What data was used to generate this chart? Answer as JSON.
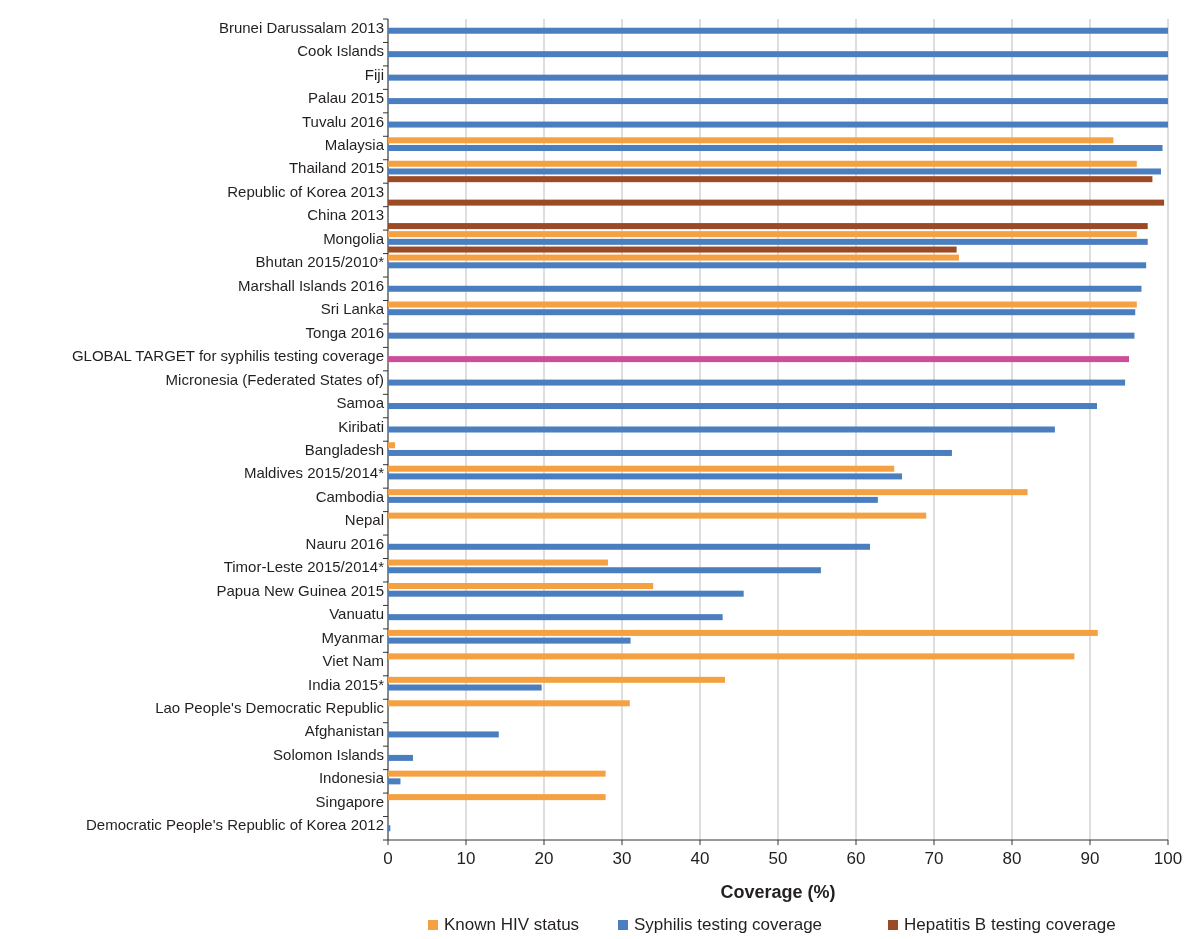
{
  "chart_data": {
    "type": "bar",
    "orientation": "horizontal",
    "xlabel": "Coverage (%)",
    "categories": [
      "Brunei Darussalam 2013",
      "Cook Islands",
      "Fiji",
      "Palau 2015",
      "Tuvalu 2016",
      "Malaysia",
      "Thailand 2015",
      "Republic of Korea 2013",
      "China 2013",
      "Mongolia",
      "Bhutan 2015/2010*",
      "Marshall Islands 2016",
      "Sri Lanka",
      "Tonga 2016",
      "GLOBAL TARGET for syphilis testing coverage",
      "Micronesia (Federated States of)",
      "Samoa",
      "Kiribati",
      "Bangladesh",
      "Maldives 2015/2014*",
      "Cambodia",
      "Nepal",
      "Nauru 2016",
      "Timor-Leste 2015/2014*",
      "Papua New Guinea 2015",
      "Vanuatu",
      "Myanmar",
      "Viet Nam",
      "India 2015*",
      "Lao People's Democratic Republic",
      "Afghanistan",
      "Solomon Islands",
      "Indonesia",
      "Singapore",
      "Democratic People's Republic of Korea 2012"
    ],
    "series": [
      {
        "name": "Known HIV status",
        "color": "#f5a142",
        "values": [
          null,
          null,
          null,
          null,
          null,
          93.0,
          96.0,
          null,
          null,
          96.0,
          73.2,
          null,
          96.0,
          null,
          null,
          null,
          null,
          null,
          0.9,
          64.9,
          82.0,
          69.0,
          null,
          28.2,
          34.0,
          null,
          91.0,
          88.0,
          43.2,
          31.0,
          null,
          null,
          27.9,
          27.9,
          null
        ]
      },
      {
        "name": "Syphilis testing coverage",
        "color": "#4a7ebf",
        "colors": [
          "#4a7ebf",
          "#4a7ebf",
          "#4a7ebf",
          "#4a7ebf",
          "#4a7ebf",
          "#4a7ebf",
          "#4a7ebf",
          null,
          null,
          "#4a7ebf",
          "#4a7ebf",
          "#4a7ebf",
          "#4a7ebf",
          "#4a7ebf",
          "#cc4d99",
          "#4a7ebf",
          "#4a7ebf",
          "#4a7ebf",
          "#4a7ebf",
          "#4a7ebf",
          "#4a7ebf",
          null,
          "#4a7ebf",
          "#4a7ebf",
          "#4a7ebf",
          "#4a7ebf",
          "#4a7ebf",
          null,
          "#4a7ebf",
          null,
          "#4a7ebf",
          "#4a7ebf",
          "#4a7ebf",
          null,
          "#4a7ebf"
        ],
        "values": [
          100,
          100,
          100,
          100,
          100,
          99.3,
          99.1,
          null,
          null,
          97.4,
          97.2,
          96.6,
          95.8,
          95.7,
          95.0,
          94.5,
          90.9,
          85.5,
          72.3,
          65.9,
          62.8,
          null,
          61.8,
          55.5,
          45.6,
          42.9,
          31.1,
          null,
          19.7,
          null,
          14.2,
          3.2,
          1.6,
          null,
          0.3
        ]
      },
      {
        "name": "Hepatitis B testing coverage",
        "color": "#9a4a24",
        "values": [
          null,
          null,
          null,
          null,
          null,
          null,
          98.0,
          99.5,
          97.4,
          72.9,
          null,
          null,
          null,
          null,
          null,
          null,
          null,
          null,
          null,
          null,
          null,
          null,
          null,
          null,
          null,
          null,
          null,
          null,
          null,
          null,
          null,
          null,
          null,
          null,
          null
        ]
      }
    ],
    "xlim": [
      0,
      100
    ],
    "xticks": [
      0,
      10,
      20,
      30,
      40,
      50,
      60,
      70,
      80,
      90,
      100
    ],
    "grid": "x",
    "legend": "bottom"
  }
}
